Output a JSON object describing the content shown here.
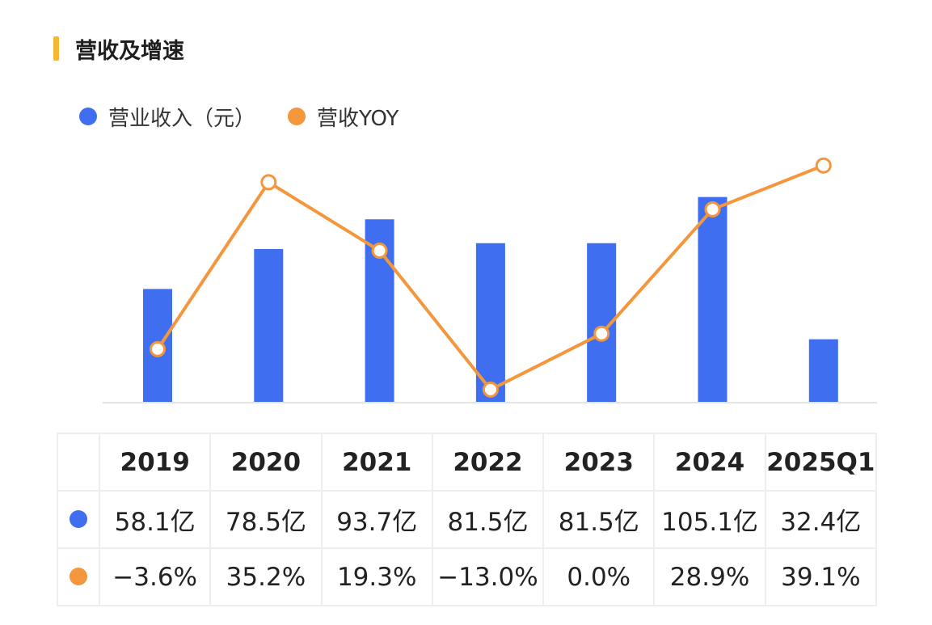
{
  "title": "营收及增速",
  "colors": {
    "accent_bar": "#f5b731",
    "revenue": "#3f6ff0",
    "yoy": "#f4963c",
    "axis": "#e4e4e4"
  },
  "chart_data": {
    "type": "bar",
    "categories": [
      "2019",
      "2020",
      "2021",
      "2022",
      "2023",
      "2024",
      "2025Q1"
    ],
    "series": [
      {
        "name": "营业收入（元）",
        "chart_type": "bar",
        "values": [
          58.1,
          78.5,
          93.7,
          81.5,
          81.5,
          105.1,
          32.4
        ],
        "labels": [
          "58.1亿",
          "78.5亿",
          "93.7亿",
          "81.5亿",
          "81.5亿",
          "105.1亿",
          "32.4亿"
        ]
      },
      {
        "name": "营收YOY",
        "chart_type": "line",
        "values": [
          -3.6,
          35.2,
          19.3,
          -13.0,
          0.0,
          28.9,
          39.1
        ],
        "labels": [
          "−3.6%",
          "35.2%",
          "19.3%",
          "−13.0%",
          "0.0%",
          "28.9%",
          "39.1%"
        ]
      }
    ],
    "legend_position": "top-left",
    "grid": false
  }
}
